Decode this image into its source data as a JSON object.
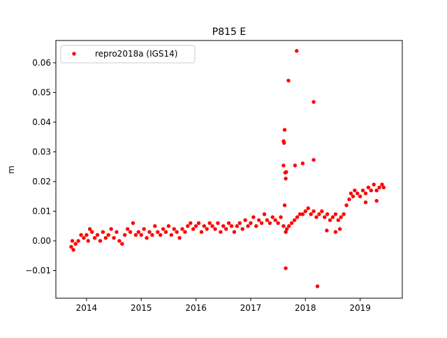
{
  "chart_data": {
    "type": "scatter",
    "title": "P815 E",
    "xlabel": "",
    "ylabel": "m",
    "xlim": [
      2013.44,
      2019.77
    ],
    "ylim": [
      -0.0193,
      0.0675
    ],
    "xticks": [
      2014,
      2015,
      2016,
      2017,
      2018,
      2019
    ],
    "xtick_labels": [
      "2014",
      "2015",
      "2016",
      "2017",
      "2018",
      "2019"
    ],
    "yticks": [
      -0.01,
      0.0,
      0.01,
      0.02,
      0.03,
      0.04,
      0.05,
      0.06
    ],
    "ytick_labels": [
      "−0.01",
      "0.00",
      "0.01",
      "0.02",
      "0.03",
      "0.04",
      "0.05",
      "0.06"
    ],
    "legend": {
      "placement": "top-left",
      "entries": [
        "repro2018a (IGS14)"
      ]
    },
    "series": [
      {
        "name": "repro2018a (IGS14)",
        "color": "#ff0000",
        "points": [
          [
            2013.72,
            -0.002
          ],
          [
            2013.74,
            0.0
          ],
          [
            2013.76,
            -0.003
          ],
          [
            2013.8,
            -0.001
          ],
          [
            2013.85,
            0.0
          ],
          [
            2013.9,
            0.002
          ],
          [
            2013.95,
            0.001
          ],
          [
            2014.0,
            0.002
          ],
          [
            2014.03,
            0.0
          ],
          [
            2014.06,
            0.004
          ],
          [
            2014.1,
            0.003
          ],
          [
            2014.15,
            0.001
          ],
          [
            2014.2,
            0.002
          ],
          [
            2014.25,
            0.0
          ],
          [
            2014.3,
            0.003
          ],
          [
            2014.35,
            0.001
          ],
          [
            2014.4,
            0.002
          ],
          [
            2014.45,
            0.004
          ],
          [
            2014.5,
            0.001
          ],
          [
            2014.55,
            0.003
          ],
          [
            2014.6,
            0.0
          ],
          [
            2014.65,
            -0.001
          ],
          [
            2014.7,
            0.002
          ],
          [
            2014.75,
            0.004
          ],
          [
            2014.8,
            0.003
          ],
          [
            2014.85,
            0.006
          ],
          [
            2014.9,
            0.002
          ],
          [
            2014.95,
            0.003
          ],
          [
            2015.0,
            0.002
          ],
          [
            2015.05,
            0.004
          ],
          [
            2015.1,
            0.001
          ],
          [
            2015.15,
            0.003
          ],
          [
            2015.2,
            0.002
          ],
          [
            2015.25,
            0.005
          ],
          [
            2015.3,
            0.003
          ],
          [
            2015.35,
            0.002
          ],
          [
            2015.4,
            0.004
          ],
          [
            2015.45,
            0.003
          ],
          [
            2015.5,
            0.005
          ],
          [
            2015.55,
            0.002
          ],
          [
            2015.6,
            0.004
          ],
          [
            2015.65,
            0.003
          ],
          [
            2015.7,
            0.001
          ],
          [
            2015.75,
            0.004
          ],
          [
            2015.8,
            0.003
          ],
          [
            2015.85,
            0.005
          ],
          [
            2015.9,
            0.006
          ],
          [
            2015.95,
            0.004
          ],
          [
            2016.0,
            0.005
          ],
          [
            2016.05,
            0.006
          ],
          [
            2016.1,
            0.003
          ],
          [
            2016.15,
            0.005
          ],
          [
            2016.2,
            0.004
          ],
          [
            2016.25,
            0.006
          ],
          [
            2016.3,
            0.005
          ],
          [
            2016.35,
            0.004
          ],
          [
            2016.4,
            0.006
          ],
          [
            2016.45,
            0.003
          ],
          [
            2016.5,
            0.005
          ],
          [
            2016.55,
            0.004
          ],
          [
            2016.6,
            0.006
          ],
          [
            2016.65,
            0.005
          ],
          [
            2016.7,
            0.003
          ],
          [
            2016.75,
            0.005
          ],
          [
            2016.8,
            0.006
          ],
          [
            2016.85,
            0.004
          ],
          [
            2016.9,
            0.007
          ],
          [
            2016.95,
            0.005
          ],
          [
            2017.0,
            0.006
          ],
          [
            2017.05,
            0.008
          ],
          [
            2017.1,
            0.005
          ],
          [
            2017.15,
            0.007
          ],
          [
            2017.2,
            0.006
          ],
          [
            2017.25,
            0.009
          ],
          [
            2017.3,
            0.007
          ],
          [
            2017.35,
            0.006
          ],
          [
            2017.4,
            0.008
          ],
          [
            2017.45,
            0.007
          ],
          [
            2017.5,
            0.006
          ],
          [
            2017.55,
            0.008
          ],
          [
            2017.6,
            0.005
          ],
          [
            2017.62,
            0.012
          ],
          [
            2017.64,
            0.003
          ],
          [
            2017.66,
            0.004
          ],
          [
            2017.7,
            0.005
          ],
          [
            2017.75,
            0.006
          ],
          [
            2017.8,
            0.007
          ],
          [
            2017.85,
            0.008
          ],
          [
            2017.9,
            0.009
          ],
          [
            2017.95,
            0.009
          ],
          [
            2018.0,
            0.01
          ],
          [
            2018.05,
            0.011
          ],
          [
            2018.1,
            0.009
          ],
          [
            2018.15,
            0.01
          ],
          [
            2018.2,
            0.008
          ],
          [
            2018.25,
            0.009
          ],
          [
            2018.3,
            0.01
          ],
          [
            2018.35,
            0.008
          ],
          [
            2018.4,
            0.009
          ],
          [
            2018.45,
            0.007
          ],
          [
            2018.5,
            0.008
          ],
          [
            2018.55,
            0.009
          ],
          [
            2018.6,
            0.007
          ],
          [
            2018.65,
            0.008
          ],
          [
            2018.7,
            0.009
          ],
          [
            2018.75,
            0.012
          ],
          [
            2018.8,
            0.014
          ],
          [
            2018.83,
            0.016
          ],
          [
            2018.87,
            0.015
          ],
          [
            2018.9,
            0.017
          ],
          [
            2018.95,
            0.016
          ],
          [
            2019.0,
            0.015
          ],
          [
            2019.05,
            0.017
          ],
          [
            2019.1,
            0.016
          ],
          [
            2019.15,
            0.018
          ],
          [
            2019.2,
            0.017
          ],
          [
            2019.25,
            0.019
          ],
          [
            2019.3,
            0.017
          ],
          [
            2019.35,
            0.018
          ],
          [
            2019.4,
            0.019
          ],
          [
            2019.43,
            0.018
          ],
          [
            2017.84,
            0.064
          ],
          [
            2017.69,
            0.054
          ],
          [
            2018.15,
            0.0468
          ],
          [
            2017.62,
            0.0374
          ],
          [
            2017.6,
            0.0336
          ],
          [
            2017.61,
            0.033
          ],
          [
            2017.6,
            0.0254
          ],
          [
            2017.81,
            0.0254
          ],
          [
            2017.95,
            0.0261
          ],
          [
            2018.15,
            0.0273
          ],
          [
            2017.63,
            0.023
          ],
          [
            2017.65,
            0.0232
          ],
          [
            2017.64,
            0.021
          ],
          [
            2017.64,
            -0.0092
          ],
          [
            2018.22,
            -0.0153
          ],
          [
            2018.39,
            0.0035
          ],
          [
            2018.55,
            0.003
          ],
          [
            2018.63,
            0.004
          ],
          [
            2019.1,
            0.013
          ],
          [
            2019.3,
            0.0135
          ]
        ]
      }
    ]
  }
}
